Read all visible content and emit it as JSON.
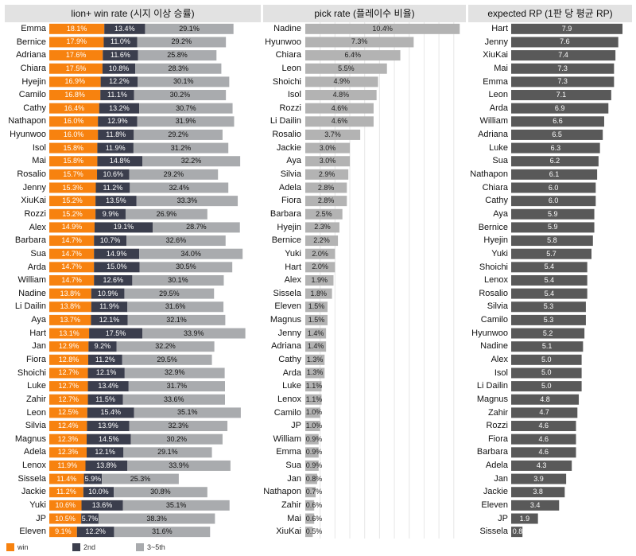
{
  "chart_data": [
    {
      "type": "bar",
      "orientation": "horizontal",
      "stacked": true,
      "title": "lion+ win rate (시지 이상 승률)",
      "categories": [
        "Emma",
        "Bernice",
        "Adriana",
        "Chiara",
        "Hyejin",
        "Camilo",
        "Cathy",
        "Nathapon",
        "Hyunwoo",
        "Isol",
        "Mai",
        "Rosalio",
        "Jenny",
        "XiuKai",
        "Rozzi",
        "Alex",
        "Barbara",
        "Sua",
        "Arda",
        "William",
        "Nadine",
        "Li Dailin",
        "Aya",
        "Hart",
        "Jan",
        "Fiora",
        "Shoichi",
        "Luke",
        "Zahir",
        "Leon",
        "Silvia",
        "Magnus",
        "Adela",
        "Lenox",
        "Sissela",
        "Jackie",
        "Yuki",
        "JP",
        "Eleven"
      ],
      "series": [
        {
          "name": "win",
          "color": "#f7820f",
          "values": [
            18.1,
            17.9,
            17.6,
            17.5,
            16.9,
            16.8,
            16.4,
            16.0,
            16.0,
            15.8,
            15.8,
            15.7,
            15.3,
            15.2,
            15.2,
            14.9,
            14.7,
            14.7,
            14.7,
            14.7,
            13.8,
            13.8,
            13.7,
            13.1,
            12.9,
            12.8,
            12.7,
            12.7,
            12.7,
            12.5,
            12.4,
            12.3,
            12.3,
            11.9,
            11.4,
            11.2,
            10.6,
            10.5,
            9.1
          ],
          "labels": [
            "18.1%",
            "17.9%",
            "17.6%",
            "17.5%",
            "16.9%",
            "16.8%",
            "16.4%",
            "16.0%",
            "16.0%",
            "15.8%",
            "15.8%",
            "15.7%",
            "15.3%",
            "15.2%",
            "15.2%",
            "14.9%",
            "14.7%",
            "14.7%",
            "14.7%",
            "14.7%",
            "13.8%",
            "13.8%",
            "13.7%",
            "13.1%",
            "12.9%",
            "12.8%",
            "12.7%",
            "12.7%",
            "12.7%",
            "12.5%",
            "12.4%",
            "12.3%",
            "12.3%",
            "11.9%",
            "11.4%",
            "11.2%",
            "10.6%",
            "10.5%",
            "9.1%"
          ]
        },
        {
          "name": "2nd",
          "color": "#3b3e4d",
          "values": [
            13.4,
            11.0,
            11.6,
            10.8,
            12.2,
            11.1,
            13.2,
            12.9,
            11.8,
            11.9,
            14.8,
            10.6,
            11.2,
            13.5,
            9.9,
            19.1,
            10.7,
            14.9,
            15.0,
            12.6,
            10.9,
            11.9,
            12.1,
            17.5,
            9.2,
            11.2,
            12.1,
            13.4,
            11.5,
            15.4,
            13.9,
            14.5,
            12.1,
            13.8,
            5.9,
            10.0,
            13.6,
            5.7,
            12.2
          ],
          "labels": [
            "13.4%",
            "11.0%",
            "11.6%",
            "10.8%",
            "12.2%",
            "11.1%",
            "13.2%",
            "12.9%",
            "11.8%",
            "11.9%",
            "14.8%",
            "10.6%",
            "11.2%",
            "13.5%",
            "9.9%",
            "19.1%",
            "10.7%",
            "14.9%",
            "15.0%",
            "12.6%",
            "10.9%",
            "11.9%",
            "12.1%",
            "17.5%",
            "9.2%",
            "11.2%",
            "12.1%",
            "13.4%",
            "11.5%",
            "15.4%",
            "13.9%",
            "14.5%",
            "12.1%",
            "13.8%",
            "5.9%",
            "10.0%",
            "13.6%",
            "5.7%",
            "12.2%"
          ]
        },
        {
          "name": "3~5th",
          "color": "#a9abae",
          "values": [
            29.1,
            29.2,
            25.8,
            28.3,
            30.1,
            30.2,
            30.7,
            31.9,
            29.2,
            31.2,
            32.2,
            29.2,
            32.4,
            33.3,
            26.9,
            28.7,
            32.6,
            34.0,
            30.5,
            30.1,
            29.5,
            31.6,
            32.1,
            33.9,
            32.2,
            29.5,
            32.9,
            31.7,
            33.6,
            35.1,
            32.3,
            30.2,
            29.1,
            33.9,
            25.3,
            30.8,
            35.1,
            38.3,
            31.6
          ],
          "labels": [
            "29.1%",
            "29.2%",
            "25.8%",
            "28.3%",
            "30.1%",
            "30.2%",
            "30.7%",
            "31.9%",
            "29.2%",
            "31.2%",
            "32.2%",
            "29.2%",
            "32.4%",
            "33.3%",
            "26.9%",
            "28.7%",
            "32.6%",
            "34.0%",
            "30.5%",
            "30.1%",
            "29.5%",
            "31.6%",
            "32.1%",
            "33.9%",
            "32.2%",
            "29.5%",
            "32.9%",
            "31.7%",
            "33.6%",
            "35.1%",
            "32.3%",
            "30.2%",
            "29.1%",
            "33.9%",
            "25.3%",
            "30.8%",
            "35.1%",
            "38.3%",
            "31.6%"
          ]
        }
      ],
      "xlim": [
        0,
        68
      ],
      "grid": false,
      "legend_position": "bottom-left"
    },
    {
      "type": "bar",
      "orientation": "horizontal",
      "title": "pick rate (플레이수 비율)",
      "categories": [
        "Nadine",
        "Hyunwoo",
        "Chiara",
        "Leon",
        "Shoichi",
        "Isol",
        "Rozzi",
        "Li Dailin",
        "Rosalio",
        "Jackie",
        "Aya",
        "Silvia",
        "Adela",
        "Fiora",
        "Barbara",
        "Hyejin",
        "Bernice",
        "Yuki",
        "Hart",
        "Alex",
        "Sissela",
        "Eleven",
        "Magnus",
        "Jenny",
        "Adriana",
        "Cathy",
        "Arda",
        "Luke",
        "Lenox",
        "Camilo",
        "JP",
        "William",
        "Emma",
        "Sua",
        "Jan",
        "Nathapon",
        "Zahir",
        "Mai",
        "XiuKai"
      ],
      "values": [
        10.4,
        7.3,
        6.4,
        5.5,
        4.9,
        4.8,
        4.6,
        4.6,
        3.7,
        3.0,
        3.0,
        2.9,
        2.8,
        2.8,
        2.5,
        2.3,
        2.2,
        2.0,
        2.0,
        1.9,
        1.8,
        1.5,
        1.5,
        1.4,
        1.4,
        1.3,
        1.3,
        1.1,
        1.1,
        1.0,
        1.0,
        0.9,
        0.9,
        0.9,
        0.8,
        0.7,
        0.6,
        0.6,
        0.5
      ],
      "labels": [
        "10.4%",
        "7.3%",
        "6.4%",
        "5.5%",
        "4.9%",
        "4.8%",
        "4.6%",
        "4.6%",
        "3.7%",
        "3.0%",
        "3.0%",
        "2.9%",
        "2.8%",
        "2.8%",
        "2.5%",
        "2.3%",
        "2.2%",
        "2.0%",
        "2.0%",
        "1.9%",
        "1.8%",
        "1.5%",
        "1.5%",
        "1.4%",
        "1.4%",
        "1.3%",
        "1.3%",
        "1.1%",
        "1.1%",
        "1.0%",
        "1.0%",
        "0.9%",
        "0.9%",
        "0.9%",
        "0.8%",
        "0.7%",
        "0.6%",
        "0.6%",
        "0.5%"
      ],
      "color": "#b3b3b3",
      "xlim": [
        0,
        10.6
      ],
      "grid": true
    },
    {
      "type": "bar",
      "orientation": "horizontal",
      "title": "expected RP (1판 당 평균 RP)",
      "categories": [
        "Hart",
        "Jenny",
        "XiuKai",
        "Mai",
        "Emma",
        "Leon",
        "Arda",
        "William",
        "Adriana",
        "Luke",
        "Sua",
        "Nathapon",
        "Chiara",
        "Cathy",
        "Aya",
        "Bernice",
        "Hyejin",
        "Yuki",
        "Shoichi",
        "Lenox",
        "Rosalio",
        "Silvia",
        "Camilo",
        "Hyunwoo",
        "Nadine",
        "Alex",
        "Isol",
        "Li Dailin",
        "Magnus",
        "Zahir",
        "Rozzi",
        "Fiora",
        "Barbara",
        "Adela",
        "Jan",
        "Jackie",
        "Eleven",
        "JP",
        "Sissela"
      ],
      "values": [
        7.9,
        7.6,
        7.4,
        7.3,
        7.3,
        7.1,
        6.9,
        6.6,
        6.5,
        6.3,
        6.2,
        6.1,
        6.0,
        6.0,
        5.9,
        5.9,
        5.8,
        5.7,
        5.4,
        5.4,
        5.4,
        5.3,
        5.3,
        5.2,
        5.1,
        5.0,
        5.0,
        5.0,
        4.8,
        4.7,
        4.6,
        4.6,
        4.6,
        4.3,
        3.9,
        3.8,
        3.4,
        1.9,
        0.8
      ],
      "labels": [
        "7.9",
        "7.6",
        "7.4",
        "7.3",
        "7.3",
        "7.1",
        "6.9",
        "6.6",
        "6.5",
        "6.3",
        "6.2",
        "6.1",
        "6.0",
        "6.0",
        "5.9",
        "5.9",
        "5.8",
        "5.7",
        "5.4",
        "5.4",
        "5.4",
        "5.3",
        "5.3",
        "5.2",
        "5.1",
        "5.0",
        "5.0",
        "5.0",
        "4.8",
        "4.7",
        "4.6",
        "4.6",
        "4.6",
        "4.3",
        "3.9",
        "3.8",
        "3.4",
        "1.9",
        "0.8"
      ],
      "color": "#595959",
      "xlim": [
        0,
        7.9
      ],
      "grid": false
    }
  ]
}
